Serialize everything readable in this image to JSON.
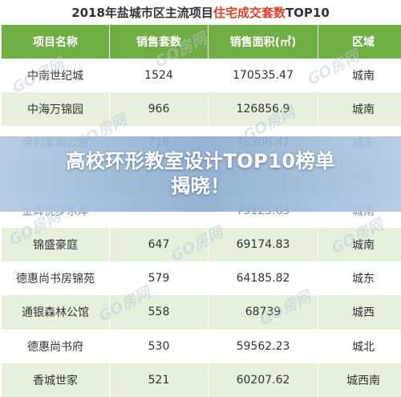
{
  "title": {
    "prefix": "2018年盐城市区主流项目",
    "highlight": "住宅成交套数",
    "suffix": "TOP10"
  },
  "table": {
    "headers": [
      "项目名称",
      "销售套数",
      "销售面积(㎡)",
      "区域"
    ],
    "rows": [
      {
        "name": "中南世纪城",
        "count": "1524",
        "area": "170535.47",
        "region": "城南"
      },
      {
        "name": "中海万锦园",
        "count": "966",
        "area": "126856.9",
        "region": "城南"
      },
      {
        "name": "保利紫荆公馆",
        "count": "716",
        "area": "78306.47",
        "region": "城东"
      },
      {
        "name": "",
        "count": "",
        "area": "",
        "region": "中心"
      },
      {
        "name": "金辉优步水岸",
        "count": "",
        "area": "75123.63",
        "region": "城南"
      },
      {
        "name": "锦盛豪庭",
        "count": "647",
        "area": "69174.83",
        "region": "城南"
      },
      {
        "name": "德惠尚书房锦苑",
        "count": "579",
        "area": "64185.82",
        "region": "城东"
      },
      {
        "name": "通银森林公馆",
        "count": "558",
        "area": "68739",
        "region": "城西"
      },
      {
        "name": "德惠尚书府",
        "count": "530",
        "area": "59562.23",
        "region": "城北"
      },
      {
        "name": "香城世家",
        "count": "521",
        "area": "60207.62",
        "region": "城西南"
      }
    ]
  },
  "watermark_text": "GO房网",
  "banner": {
    "line1": "高校环形教室设计TOP10榜单",
    "line2": "揭晓！"
  }
}
